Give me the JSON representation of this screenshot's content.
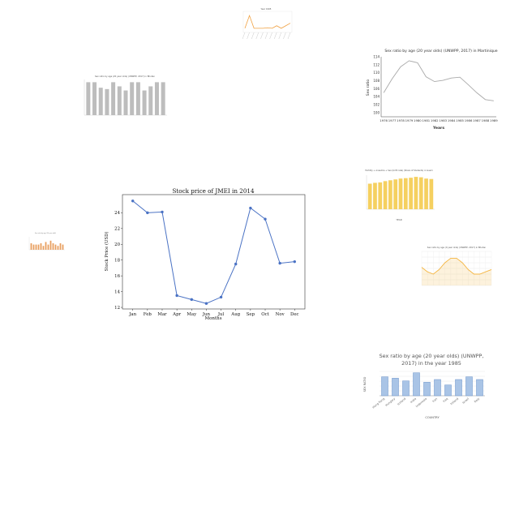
{
  "chart_data": [
    {
      "type": "line",
      "title": "Stock price of JMEI in 2014",
      "xlabel": "Months",
      "ylabel": "Stock Price (USD)",
      "categories": [
        "Jan",
        "Feb",
        "Mar",
        "Apr",
        "May",
        "Jun",
        "Jul",
        "Aug",
        "Sep",
        "Oct",
        "Nov",
        "Dec"
      ],
      "values": [
        25.5,
        24.0,
        24.1,
        13.5,
        13.0,
        12.5,
        13.3,
        17.5,
        24.6,
        23.2,
        17.6,
        17.8
      ],
      "ylim": [
        12,
        26
      ],
      "yticks": [
        "12",
        "14",
        "16",
        "18",
        "20",
        "22",
        "24"
      ],
      "color": "#4a72c4",
      "grid": false
    },
    {
      "type": "line",
      "title": "Sex ratio by age (20 year olds) (UNWPP, 2017) in Martinique",
      "xlabel": "Years",
      "ylabel": "Sex ratio",
      "categories": [
        "1976",
        "1977",
        "1978",
        "1979",
        "1980",
        "1981",
        "1982",
        "1983",
        "1984",
        "1985",
        "1986",
        "1987",
        "1988",
        "1989"
      ],
      "values": [
        105,
        108.5,
        111.5,
        113,
        112.5,
        109,
        107.8,
        108.1,
        108.7,
        108.9,
        107,
        105,
        103.3,
        103
      ],
      "ylim": [
        99,
        114
      ],
      "yticks": [
        "100",
        "102",
        "104",
        "106",
        "108",
        "110",
        "112",
        "114"
      ],
      "color": "#a9a9a9",
      "grid": false
    },
    {
      "type": "line",
      "title": "Year 1995",
      "values": [
        1,
        6,
        1,
        1,
        1,
        1.2,
        1,
        2,
        1,
        2,
        3
      ],
      "color": "#f0a040"
    },
    {
      "type": "bar",
      "title": "Sex ratio by age (20 year olds) (UNWPP, 2017) in Bhutan",
      "values": [
        104,
        104,
        100,
        99,
        104,
        101,
        98,
        104,
        104,
        98,
        101,
        104,
        104
      ],
      "ylim": [
        80,
        106
      ],
      "color": "#bdbdbd"
    },
    {
      "type": "bar",
      "title": "Fertility + Anaemia + Sex (birth rate) (Share of Students) in Guam",
      "xlabel": "YEAR",
      "values": [
        60,
        62,
        63,
        66,
        68,
        70,
        72,
        73,
        74,
        76,
        75,
        72,
        71
      ],
      "ylim": [
        0,
        80
      ],
      "color": "#f5d060"
    },
    {
      "type": "bar",
      "title": "Sex ratio by age (20 year olds)",
      "values": [
        5,
        4,
        4,
        4,
        5,
        3,
        6,
        4,
        7,
        5,
        4,
        3,
        5,
        4
      ],
      "color": "#e8a060"
    },
    {
      "type": "area",
      "title": "Sex ratio by age (0 year olds) (UNWPP, 2017) in Bhutan",
      "values": [
        103,
        101,
        100,
        102,
        105,
        107,
        107,
        105,
        102,
        100,
        100,
        101,
        102
      ],
      "ylim": [
        95,
        110
      ],
      "color": "#f5b642"
    },
    {
      "type": "bar",
      "title": "Sex ratio by age (20 year olds) (UNWPP, 2017) in the year 1985",
      "xlabel": "COUNTRY",
      "ylabel": "SEX RATIO",
      "categories": [
        "Hong Kong",
        "Hungary",
        "Iceland",
        "India",
        "Indonesia",
        "Iran",
        "Iraq",
        "Ireland",
        "Israel",
        "Italy"
      ],
      "values": [
        104,
        103,
        101,
        107,
        100,
        102,
        98,
        102,
        104,
        102
      ],
      "ylim": [
        90,
        108
      ],
      "color": "#a9c4e6",
      "edge": "#6f96cc"
    }
  ]
}
